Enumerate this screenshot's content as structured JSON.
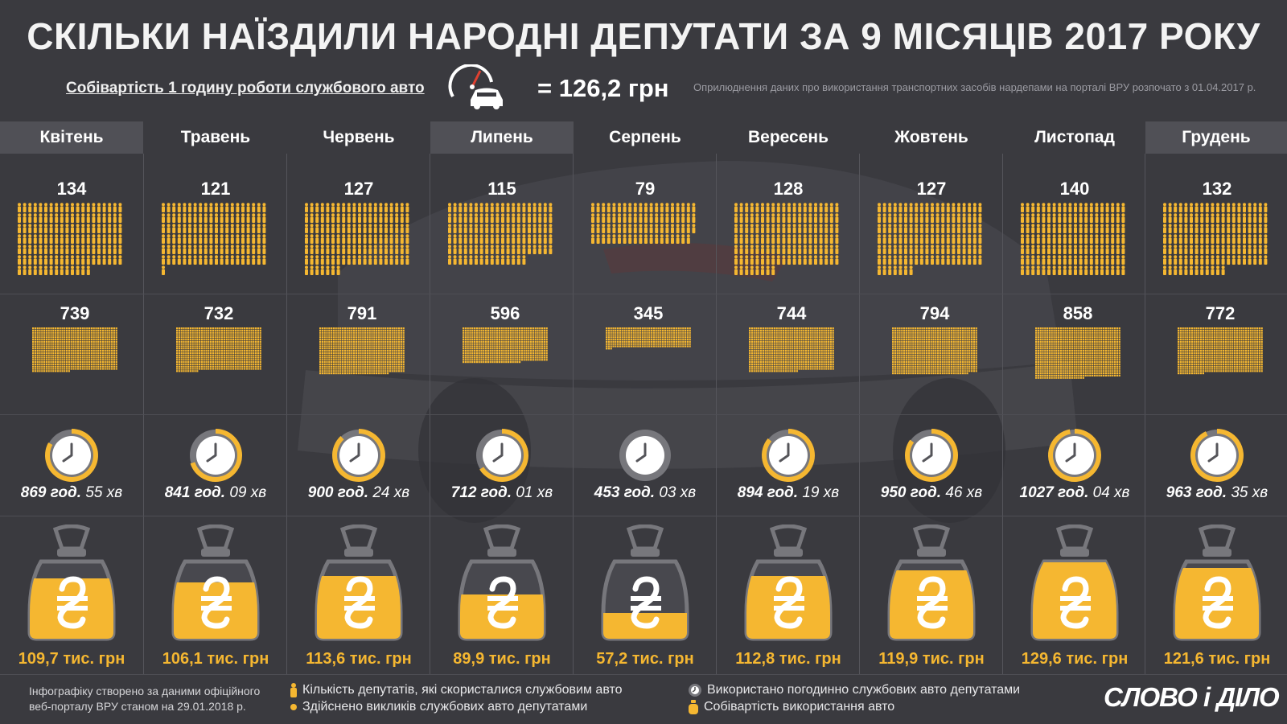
{
  "title": "СКІЛЬКИ НАЇЗДИЛИ НАРОДНІ ДЕПУТАТИ ЗА 9 МІСЯЦІВ 2017 РОКУ",
  "cost_label": "Собівартість 1 годину роботи службового авто",
  "cost_value": "= 126,2 грн",
  "note": "Оприлюднення даних про використання транспортних засобів нардепами на порталі ВРУ розпочато з 01.04.2017 р.",
  "footer": {
    "source_line1": "Інфографіку створено за даними офіційного",
    "source_line2": "веб-порталу ВРУ станом на 29.01.2018 р.",
    "legend_deputies": "Кількість депутатів, які скористалися службовим авто",
    "legend_calls": "Здійснено викликів службових авто депутатами",
    "legend_hours": "Використано погодинно службових авто депутатами",
    "legend_cost": "Собівартість використання авто",
    "logo": "СЛОВО і ДІЛО"
  },
  "colors": {
    "accent": "#f5b731",
    "background": "#3a3a3f",
    "header_shade": "#505056",
    "clock_gray": "#77777c"
  },
  "chart_data": {
    "type": "table",
    "categories": [
      "Квітень",
      "Травень",
      "Червень",
      "Липень",
      "Серпень",
      "Вересень",
      "Жовтень",
      "Листопад",
      "Грудень"
    ],
    "series": [
      {
        "name": "Кількість депутатів, які скористалися службовим авто",
        "values": [
          134,
          121,
          127,
          115,
          79,
          128,
          127,
          140,
          132
        ]
      },
      {
        "name": "Здійснено викликів службових авто депутатами",
        "values": [
          739,
          732,
          791,
          596,
          345,
          744,
          794,
          858,
          772
        ]
      },
      {
        "name": "Використано погодинно службових авто депутатами",
        "values": [
          869.92,
          841.15,
          900.4,
          712.02,
          453.05,
          894.32,
          950.77,
          1027.07,
          963.58
        ]
      },
      {
        "name": "Собівартість використання авто",
        "values": [
          109.7,
          106.1,
          113.6,
          89.9,
          57.2,
          112.8,
          119.9,
          129.6,
          121.6
        ]
      }
    ],
    "hours_text": [
      {
        "h": "869 год.",
        "m": " 55 хв"
      },
      {
        "h": "841 год.",
        "m": " 09 хв"
      },
      {
        "h": "900 год.",
        "m": " 24 хв"
      },
      {
        "h": "712 год.",
        "m": " 01 хв"
      },
      {
        "h": "453 год.",
        "m": " 03 хв"
      },
      {
        "h": "894 год.",
        "m": " 19 хв"
      },
      {
        "h": "950 год.",
        "m": " 46 хв"
      },
      {
        "h": "1027 год.",
        "m": " 04 хв"
      },
      {
        "h": "963 год.",
        "m": " 35 хв"
      }
    ],
    "cost_text": [
      "109,7 тис. грн",
      "106,1 тис. грн",
      "113,6 тис. грн",
      "89,9 тис. грн",
      "57,2 тис. грн",
      "112,8 тис. грн",
      "119,9 тис. грн",
      "129,6 тис. грн",
      "121,6 тис. грн"
    ],
    "clock_fill": [
      0.83,
      0.7,
      0.88,
      0.66,
      0.0,
      0.86,
      0.85,
      0.97,
      0.93
    ],
    "bag_fill": [
      0.75,
      0.7,
      0.78,
      0.55,
      0.32,
      0.78,
      0.85,
      0.95,
      0.88
    ]
  }
}
